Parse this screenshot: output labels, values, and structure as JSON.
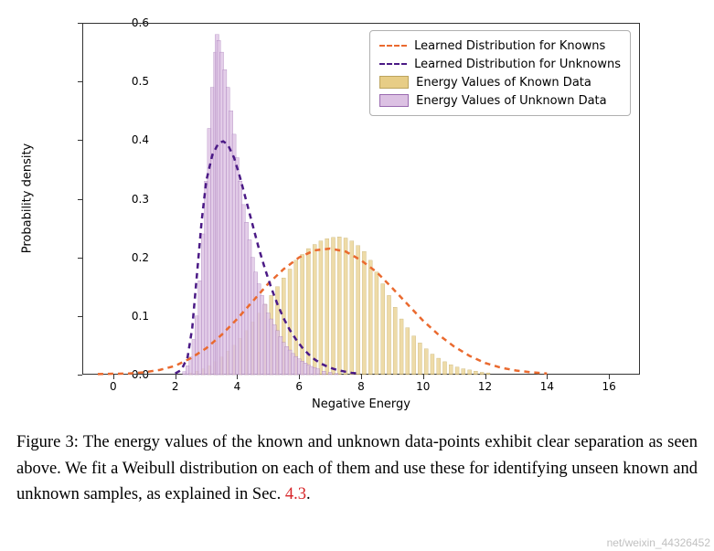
{
  "chart": {
    "type": "histogram+line",
    "background_color": "#ffffff",
    "border_color": "#333333",
    "xlim": [
      -1,
      17
    ],
    "ylim": [
      0,
      0.6
    ],
    "xticks": [
      0,
      2,
      4,
      6,
      8,
      10,
      12,
      14,
      16
    ],
    "yticks": [
      0.0,
      0.1,
      0.2,
      0.3,
      0.4,
      0.5,
      0.6
    ],
    "ytick_labels": [
      "0.0",
      "0.1",
      "0.2",
      "0.3",
      "0.4",
      "0.5",
      "0.6"
    ],
    "xtick_labels": [
      "0",
      "2",
      "4",
      "6",
      "8",
      "10",
      "12",
      "14",
      "16"
    ],
    "x_axis_label": "Negative Energy",
    "y_axis_label": "Probability density",
    "axis_label_fontsize": 13,
    "tick_fontsize": 12,
    "histograms": {
      "bin_width": 0.12,
      "unknown": {
        "fill": "#dcc1e3",
        "stroke": "#9a6bb0",
        "opacity": 0.78,
        "bins": [
          [
            2.3,
            0.005
          ],
          [
            2.4,
            0.015
          ],
          [
            2.5,
            0.03
          ],
          [
            2.6,
            0.06
          ],
          [
            2.7,
            0.1
          ],
          [
            2.8,
            0.16
          ],
          [
            2.9,
            0.24
          ],
          [
            3.0,
            0.33
          ],
          [
            3.1,
            0.42
          ],
          [
            3.2,
            0.49
          ],
          [
            3.3,
            0.55
          ],
          [
            3.35,
            0.58
          ],
          [
            3.4,
            0.57
          ],
          [
            3.5,
            0.55
          ],
          [
            3.6,
            0.52
          ],
          [
            3.7,
            0.49
          ],
          [
            3.8,
            0.45
          ],
          [
            3.9,
            0.41
          ],
          [
            4.0,
            0.37
          ],
          [
            4.1,
            0.33
          ],
          [
            4.2,
            0.29
          ],
          [
            4.3,
            0.26
          ],
          [
            4.4,
            0.23
          ],
          [
            4.5,
            0.2
          ],
          [
            4.6,
            0.175
          ],
          [
            4.7,
            0.155
          ],
          [
            4.8,
            0.135
          ],
          [
            4.9,
            0.12
          ],
          [
            5.0,
            0.105
          ],
          [
            5.1,
            0.095
          ],
          [
            5.2,
            0.085
          ],
          [
            5.3,
            0.075
          ],
          [
            5.4,
            0.065
          ],
          [
            5.5,
            0.055
          ],
          [
            5.6,
            0.048
          ],
          [
            5.7,
            0.042
          ],
          [
            5.8,
            0.036
          ],
          [
            5.9,
            0.031
          ],
          [
            6.0,
            0.027
          ],
          [
            6.1,
            0.023
          ],
          [
            6.2,
            0.02
          ],
          [
            6.3,
            0.017
          ],
          [
            6.4,
            0.014
          ],
          [
            6.5,
            0.012
          ],
          [
            6.6,
            0.01
          ],
          [
            6.8,
            0.006
          ],
          [
            7.0,
            0.004
          ],
          [
            7.2,
            0.002
          ]
        ]
      },
      "known": {
        "fill": "#e7cd86",
        "stroke": "#bca45e",
        "opacity": 0.72,
        "bins": [
          [
            2.5,
            0.003
          ],
          [
            2.7,
            0.006
          ],
          [
            2.9,
            0.01
          ],
          [
            3.1,
            0.015
          ],
          [
            3.3,
            0.022
          ],
          [
            3.5,
            0.03
          ],
          [
            3.7,
            0.04
          ],
          [
            3.9,
            0.05
          ],
          [
            4.1,
            0.062
          ],
          [
            4.3,
            0.075
          ],
          [
            4.5,
            0.09
          ],
          [
            4.7,
            0.105
          ],
          [
            4.9,
            0.12
          ],
          [
            5.1,
            0.135
          ],
          [
            5.3,
            0.15
          ],
          [
            5.5,
            0.165
          ],
          [
            5.7,
            0.18
          ],
          [
            5.9,
            0.195
          ],
          [
            6.1,
            0.205
          ],
          [
            6.3,
            0.215
          ],
          [
            6.5,
            0.222
          ],
          [
            6.7,
            0.228
          ],
          [
            6.9,
            0.232
          ],
          [
            7.1,
            0.234
          ],
          [
            7.3,
            0.235
          ],
          [
            7.5,
            0.233
          ],
          [
            7.7,
            0.228
          ],
          [
            7.9,
            0.22
          ],
          [
            8.1,
            0.21
          ],
          [
            8.3,
            0.195
          ],
          [
            8.5,
            0.175
          ],
          [
            8.7,
            0.155
          ],
          [
            8.9,
            0.135
          ],
          [
            9.1,
            0.115
          ],
          [
            9.3,
            0.095
          ],
          [
            9.5,
            0.08
          ],
          [
            9.7,
            0.066
          ],
          [
            9.9,
            0.054
          ],
          [
            10.1,
            0.044
          ],
          [
            10.3,
            0.035
          ],
          [
            10.5,
            0.028
          ],
          [
            10.7,
            0.022
          ],
          [
            10.9,
            0.017
          ],
          [
            11.1,
            0.013
          ],
          [
            11.3,
            0.01
          ],
          [
            11.5,
            0.008
          ],
          [
            11.7,
            0.006
          ],
          [
            11.9,
            0.004
          ],
          [
            12.1,
            0.003
          ]
        ]
      }
    },
    "lines": {
      "known": {
        "color": "#ea6a2f",
        "width": 2.5,
        "dash": "6,5",
        "points": [
          [
            -0.5,
            0.001
          ],
          [
            0.5,
            0.002
          ],
          [
            1.0,
            0.004
          ],
          [
            1.5,
            0.008
          ],
          [
            2.0,
            0.015
          ],
          [
            2.5,
            0.028
          ],
          [
            3.0,
            0.045
          ],
          [
            3.5,
            0.068
          ],
          [
            4.0,
            0.095
          ],
          [
            4.5,
            0.125
          ],
          [
            5.0,
            0.155
          ],
          [
            5.5,
            0.18
          ],
          [
            6.0,
            0.2
          ],
          [
            6.5,
            0.212
          ],
          [
            7.0,
            0.215
          ],
          [
            7.5,
            0.21
          ],
          [
            8.0,
            0.195
          ],
          [
            8.5,
            0.175
          ],
          [
            9.0,
            0.148
          ],
          [
            9.5,
            0.12
          ],
          [
            10.0,
            0.092
          ],
          [
            10.5,
            0.068
          ],
          [
            11.0,
            0.048
          ],
          [
            11.5,
            0.032
          ],
          [
            12.0,
            0.02
          ],
          [
            12.5,
            0.012
          ],
          [
            13.0,
            0.007
          ],
          [
            13.5,
            0.004
          ],
          [
            14.0,
            0.002
          ]
        ]
      },
      "unknown": {
        "color": "#4b1a86",
        "width": 2.5,
        "dash": "6,5",
        "points": [
          [
            2.0,
            0.002
          ],
          [
            2.2,
            0.008
          ],
          [
            2.4,
            0.03
          ],
          [
            2.55,
            0.08
          ],
          [
            2.7,
            0.17
          ],
          [
            2.85,
            0.26
          ],
          [
            3.0,
            0.33
          ],
          [
            3.2,
            0.375
          ],
          [
            3.4,
            0.395
          ],
          [
            3.55,
            0.398
          ],
          [
            3.7,
            0.392
          ],
          [
            3.9,
            0.37
          ],
          [
            4.1,
            0.335
          ],
          [
            4.3,
            0.295
          ],
          [
            4.5,
            0.255
          ],
          [
            4.7,
            0.215
          ],
          [
            4.9,
            0.18
          ],
          [
            5.1,
            0.148
          ],
          [
            5.3,
            0.12
          ],
          [
            5.5,
            0.096
          ],
          [
            5.7,
            0.076
          ],
          [
            5.9,
            0.06
          ],
          [
            6.1,
            0.046
          ],
          [
            6.3,
            0.035
          ],
          [
            6.5,
            0.026
          ],
          [
            6.7,
            0.019
          ],
          [
            6.9,
            0.014
          ],
          [
            7.1,
            0.01
          ],
          [
            7.3,
            0.007
          ],
          [
            7.5,
            0.005
          ],
          [
            7.7,
            0.003
          ],
          [
            7.9,
            0.002
          ]
        ]
      }
    },
    "legend": {
      "border_color": "#b0b0b0",
      "bg_color": "#ffffff",
      "fontsize": 13,
      "items": [
        {
          "type": "line",
          "color": "#ea6a2f",
          "label": "Learned Distribution for Knowns"
        },
        {
          "type": "line",
          "color": "#4b1a86",
          "label": "Learned Distribution for Unknowns"
        },
        {
          "type": "patch",
          "fill": "#e7cd86",
          "stroke": "#bca45e",
          "label": "Energy Values of Known Data"
        },
        {
          "type": "patch",
          "fill": "#dcc1e3",
          "stroke": "#9a6bb0",
          "label": "Energy Values of Unknown Data"
        }
      ]
    }
  },
  "caption": {
    "prefix": "Figure 3:  ",
    "text": "The energy values of the known and unknown data-points exhibit clear separation as seen above.  We fit a Weibull distribution on each of them and use these for identifying unseen known and unknown samples, as explained in Sec. ",
    "ref": "4.3",
    "suffix": ".",
    "ref_color": "#d7262a",
    "fontsize": 18.5,
    "font_family": "Times New Roman"
  },
  "watermark": "net/weixin_44326452"
}
